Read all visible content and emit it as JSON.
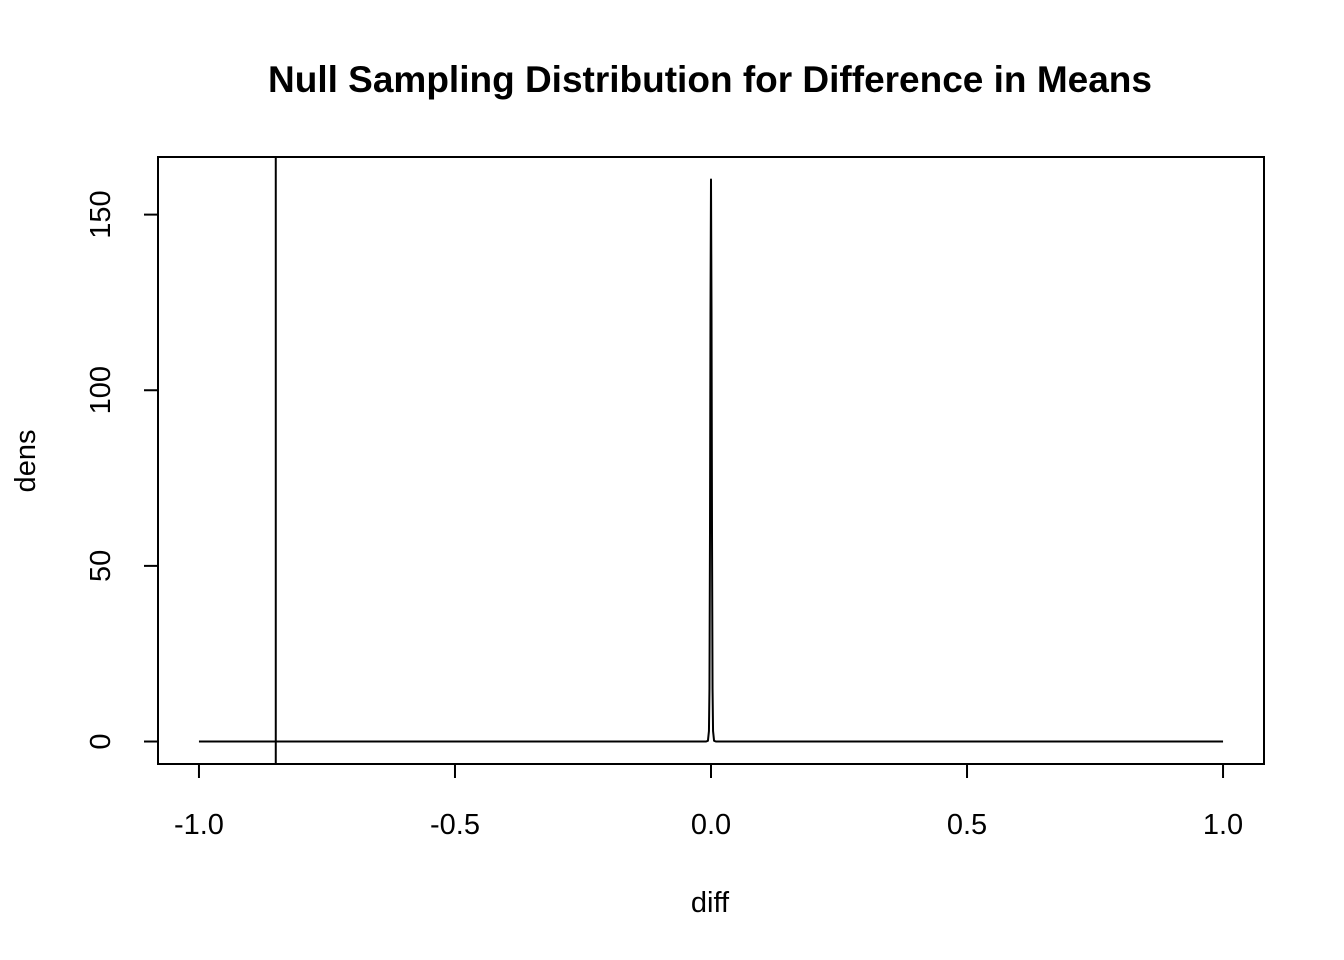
{
  "chart_data": {
    "type": "line",
    "title": "Null Sampling Distribution for Difference in Means",
    "xlabel": "diff",
    "ylabel": "dens",
    "xlim": [
      -1.08,
      1.08
    ],
    "ylim": [
      -6.4,
      166.4
    ],
    "x_ticks": [
      -1.0,
      -0.5,
      0.0,
      0.5,
      1.0
    ],
    "x_tick_labels": [
      "-1.0",
      "-0.5",
      "0.0",
      "0.5",
      "1.0"
    ],
    "y_ticks": [
      0,
      50,
      100,
      150
    ],
    "y_tick_labels": [
      "0",
      "50",
      "100",
      "150"
    ],
    "grid": false,
    "legend": "none",
    "series": [
      {
        "x": [
          -1.0,
          -0.01,
          -0.006,
          -0.004,
          -0.003,
          -0.002,
          -0.001,
          0.0,
          0.001,
          0.002,
          0.003,
          0.004,
          0.006,
          0.01,
          1.0
        ],
        "y": [
          0,
          0,
          0.2,
          3,
          15,
          58,
          122,
          160,
          122,
          58,
          15,
          3,
          0.2,
          0,
          0
        ]
      }
    ],
    "vline": {
      "x": -0.85
    },
    "colors": {
      "line": "#000000",
      "axis": "#000000",
      "background": "#ffffff"
    }
  }
}
